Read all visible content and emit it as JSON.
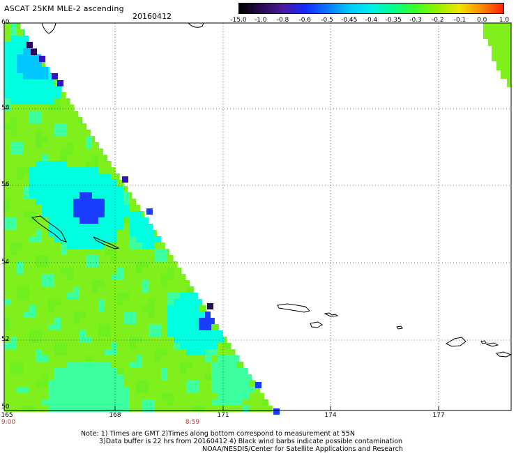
{
  "title": "ASCAT 25KM MLE-2 ascending",
  "date": "20160412",
  "colorbar": {
    "ticks": [
      "-15.0",
      "-1.0",
      "-0.8",
      "-0.6",
      "-0.5",
      "-0.45",
      "-0.4",
      "-0.35",
      "-0.3",
      "-0.2",
      "-0.1",
      "0.0",
      "1.0"
    ],
    "colors": [
      "#000000",
      "#2a0b4f",
      "#4a1aa0",
      "#1428ff",
      "#0a78ff",
      "#00c8ff",
      "#00f0e8",
      "#00ff8c",
      "#3cff28",
      "#96f000",
      "#f0e600",
      "#ff8c00",
      "#ff1e00"
    ]
  },
  "lat_labels": [
    "60",
    "58",
    "56",
    "54",
    "52",
    "50"
  ],
  "lon_labels": [
    "165",
    "168",
    "171",
    "174",
    "177"
  ],
  "time_labels": [
    "9:00",
    "8:59"
  ],
  "colors": {
    "green": "#6ef020",
    "lime": "#7ff01c",
    "teal": "#3cffa0",
    "cyan": "#00ffe0",
    "sky": "#00c8ff",
    "blue": "#1a3cff",
    "indigo": "#3214c8",
    "purple": "#2a0b5a",
    "time_label": "#c0392b"
  },
  "notes": [
    "Note: 1) Times are GMT 2)Times along bottom correspond to measurement at 55N",
    "3)Data buffer is 22 hrs from 20160412 4) Black wind barbs indicate possible contamination",
    "NOAA/NESDIS/Center for Satellite Applications and Research"
  ]
}
